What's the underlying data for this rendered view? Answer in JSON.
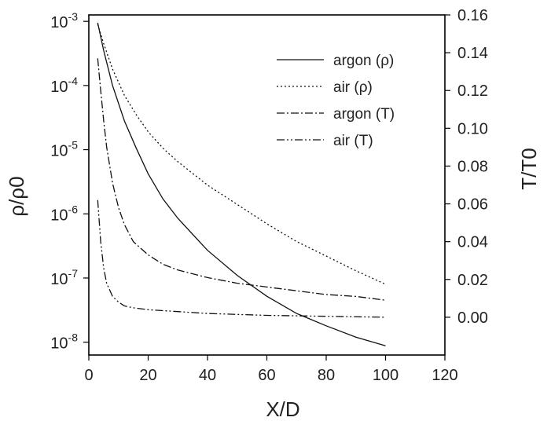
{
  "chart_data": {
    "type": "line",
    "xlabel": "X/D",
    "ylabel_left": "ρ/ρ0",
    "ylabel_right": "T/T0",
    "xlim": [
      0,
      120
    ],
    "xticks": [
      "0",
      "20",
      "40",
      "60",
      "80",
      "100",
      "120"
    ],
    "ylim_left_log10": [
      -8.2,
      -2.9
    ],
    "yticks_left": [
      {
        "exp": -3,
        "base": "10",
        "sup": "-3"
      },
      {
        "exp": -4,
        "base": "10",
        "sup": "-4"
      },
      {
        "exp": -5,
        "base": "10",
        "sup": "-5"
      },
      {
        "exp": -6,
        "base": "10",
        "sup": "-6"
      },
      {
        "exp": -7,
        "base": "10",
        "sup": "-7"
      },
      {
        "exp": -8,
        "base": "10",
        "sup": "-8"
      }
    ],
    "ylim_right": [
      -0.02,
      0.16
    ],
    "yticks_right": [
      "0.00",
      "0.02",
      "0.04",
      "0.06",
      "0.08",
      "0.10",
      "0.12",
      "0.14",
      "0.16"
    ],
    "yticks_right_values": [
      0.0,
      0.02,
      0.04,
      0.06,
      0.08,
      0.1,
      0.12,
      0.14,
      0.16
    ],
    "legend_position": "top-right",
    "series": [
      {
        "name": "argon (ρ)",
        "axis": "left",
        "dash": "",
        "x": [
          3,
          5,
          8,
          12,
          16,
          20,
          25,
          30,
          40,
          50,
          60,
          70,
          80,
          90,
          100
        ],
        "y": [
          0.00095,
          0.00035,
          0.0001,
          2.8e-05,
          1.05e-05,
          4.2e-06,
          1.7e-06,
          8.5e-07,
          2.7e-07,
          1.1e-07,
          5.2e-08,
          2.8e-08,
          1.8e-08,
          1.2e-08,
          8.8e-09
        ]
      },
      {
        "name": "air (ρ)",
        "axis": "left",
        "dash": "2,3",
        "x": [
          3,
          5,
          8,
          12,
          16,
          20,
          25,
          30,
          40,
          50,
          60,
          70,
          80,
          90,
          100
        ],
        "y": [
          0.0009,
          0.00045,
          0.00018,
          7e-05,
          3.5e-05,
          1.9e-05,
          1.05e-05,
          6.5e-06,
          2.8e-06,
          1.4e-06,
          7e-07,
          3.7e-07,
          2.2e-07,
          1.3e-07,
          8e-08
        ]
      },
      {
        "name": "argon (T)",
        "axis": "right",
        "dash": "10,3,2,3",
        "x": [
          3,
          4,
          5,
          6,
          8,
          10,
          12,
          15,
          20,
          25,
          30,
          40,
          50,
          60,
          70,
          80,
          90,
          100
        ],
        "y": [
          0.137,
          0.12,
          0.104,
          0.09,
          0.071,
          0.058,
          0.049,
          0.04,
          0.033,
          0.028,
          0.025,
          0.021,
          0.018,
          0.016,
          0.014,
          0.012,
          0.011,
          0.009
        ]
      },
      {
        "name": "air (T)",
        "axis": "right",
        "dash": "10,3,2,3,2,3",
        "x": [
          3,
          4,
          5,
          6,
          8,
          10,
          12,
          15,
          20,
          30,
          40,
          60,
          80,
          100
        ],
        "y": [
          0.062,
          0.04,
          0.026,
          0.018,
          0.011,
          0.008,
          0.006,
          0.005,
          0.004,
          0.003,
          0.002,
          0.001,
          0.0005,
          0.0
        ]
      }
    ]
  }
}
